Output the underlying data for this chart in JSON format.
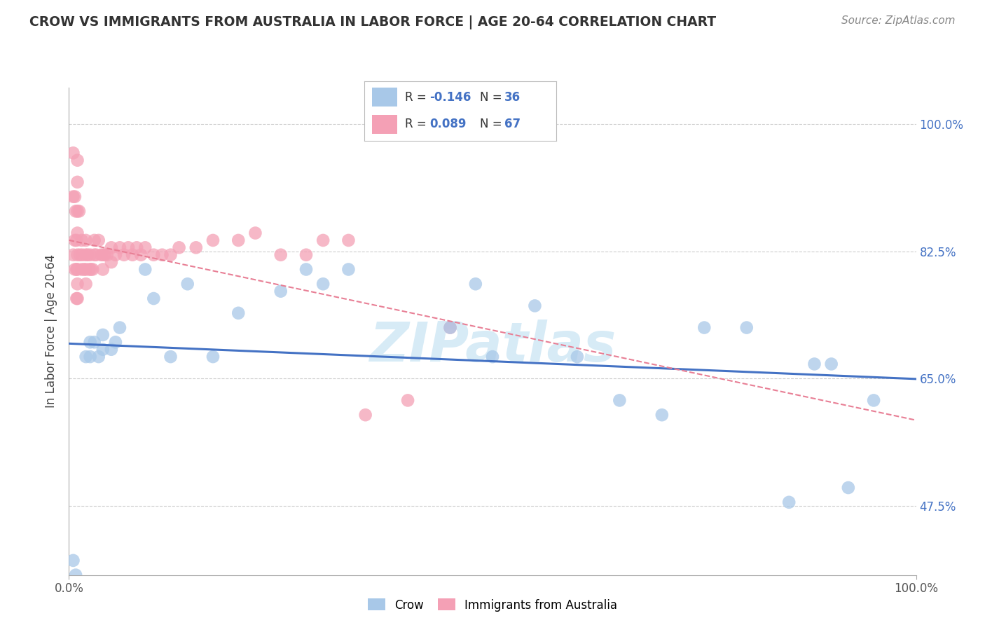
{
  "title": "CROW VS IMMIGRANTS FROM AUSTRALIA IN LABOR FORCE | AGE 20-64 CORRELATION CHART",
  "source": "Source: ZipAtlas.com",
  "ylabel": "In Labor Force | Age 20-64",
  "ytick_labels": [
    "47.5%",
    "65.0%",
    "82.5%",
    "100.0%"
  ],
  "ytick_values": [
    0.475,
    0.65,
    0.825,
    1.0
  ],
  "crow_color": "#A8C8E8",
  "imm_color": "#F4A0B5",
  "crow_line_color": "#4472C4",
  "imm_line_color": "#E87F95",
  "background_color": "#FFFFFF",
  "watermark_color": "#D0E8F5",
  "crow_x": [
    0.005,
    0.008,
    0.02,
    0.025,
    0.025,
    0.03,
    0.035,
    0.04,
    0.04,
    0.05,
    0.055,
    0.06,
    0.09,
    0.1,
    0.12,
    0.14,
    0.17,
    0.2,
    0.25,
    0.28,
    0.3,
    0.33,
    0.45,
    0.48,
    0.5,
    0.55,
    0.6,
    0.65,
    0.7,
    0.75,
    0.8,
    0.85,
    0.88,
    0.9,
    0.92,
    0.95
  ],
  "crow_y": [
    0.4,
    0.38,
    0.68,
    0.68,
    0.7,
    0.7,
    0.68,
    0.69,
    0.71,
    0.69,
    0.7,
    0.72,
    0.8,
    0.76,
    0.68,
    0.78,
    0.68,
    0.74,
    0.77,
    0.8,
    0.78,
    0.8,
    0.72,
    0.78,
    0.68,
    0.75,
    0.68,
    0.62,
    0.6,
    0.72,
    0.72,
    0.48,
    0.67,
    0.67,
    0.5,
    0.62
  ],
  "imm_x": [
    0.005,
    0.005,
    0.005,
    0.007,
    0.007,
    0.007,
    0.008,
    0.009,
    0.009,
    0.009,
    0.01,
    0.01,
    0.01,
    0.01,
    0.01,
    0.01,
    0.01,
    0.01,
    0.012,
    0.013,
    0.015,
    0.015,
    0.016,
    0.018,
    0.02,
    0.02,
    0.02,
    0.02,
    0.022,
    0.024,
    0.025,
    0.026,
    0.028,
    0.03,
    0.03,
    0.032,
    0.035,
    0.038,
    0.04,
    0.04,
    0.042,
    0.045,
    0.05,
    0.05,
    0.055,
    0.06,
    0.065,
    0.07,
    0.075,
    0.08,
    0.085,
    0.09,
    0.1,
    0.11,
    0.12,
    0.13,
    0.15,
    0.17,
    0.2,
    0.22,
    0.25,
    0.28,
    0.3,
    0.33,
    0.35,
    0.4,
    0.45
  ],
  "imm_y": [
    0.96,
    0.9,
    0.82,
    0.9,
    0.84,
    0.8,
    0.88,
    0.84,
    0.8,
    0.76,
    0.95,
    0.92,
    0.88,
    0.85,
    0.82,
    0.8,
    0.78,
    0.76,
    0.88,
    0.82,
    0.84,
    0.8,
    0.82,
    0.8,
    0.84,
    0.82,
    0.8,
    0.78,
    0.82,
    0.8,
    0.82,
    0.8,
    0.8,
    0.84,
    0.82,
    0.82,
    0.84,
    0.82,
    0.82,
    0.8,
    0.82,
    0.82,
    0.83,
    0.81,
    0.82,
    0.83,
    0.82,
    0.83,
    0.82,
    0.83,
    0.82,
    0.83,
    0.82,
    0.82,
    0.82,
    0.83,
    0.83,
    0.84,
    0.84,
    0.85,
    0.82,
    0.82,
    0.84,
    0.84,
    0.6,
    0.62,
    0.72
  ]
}
